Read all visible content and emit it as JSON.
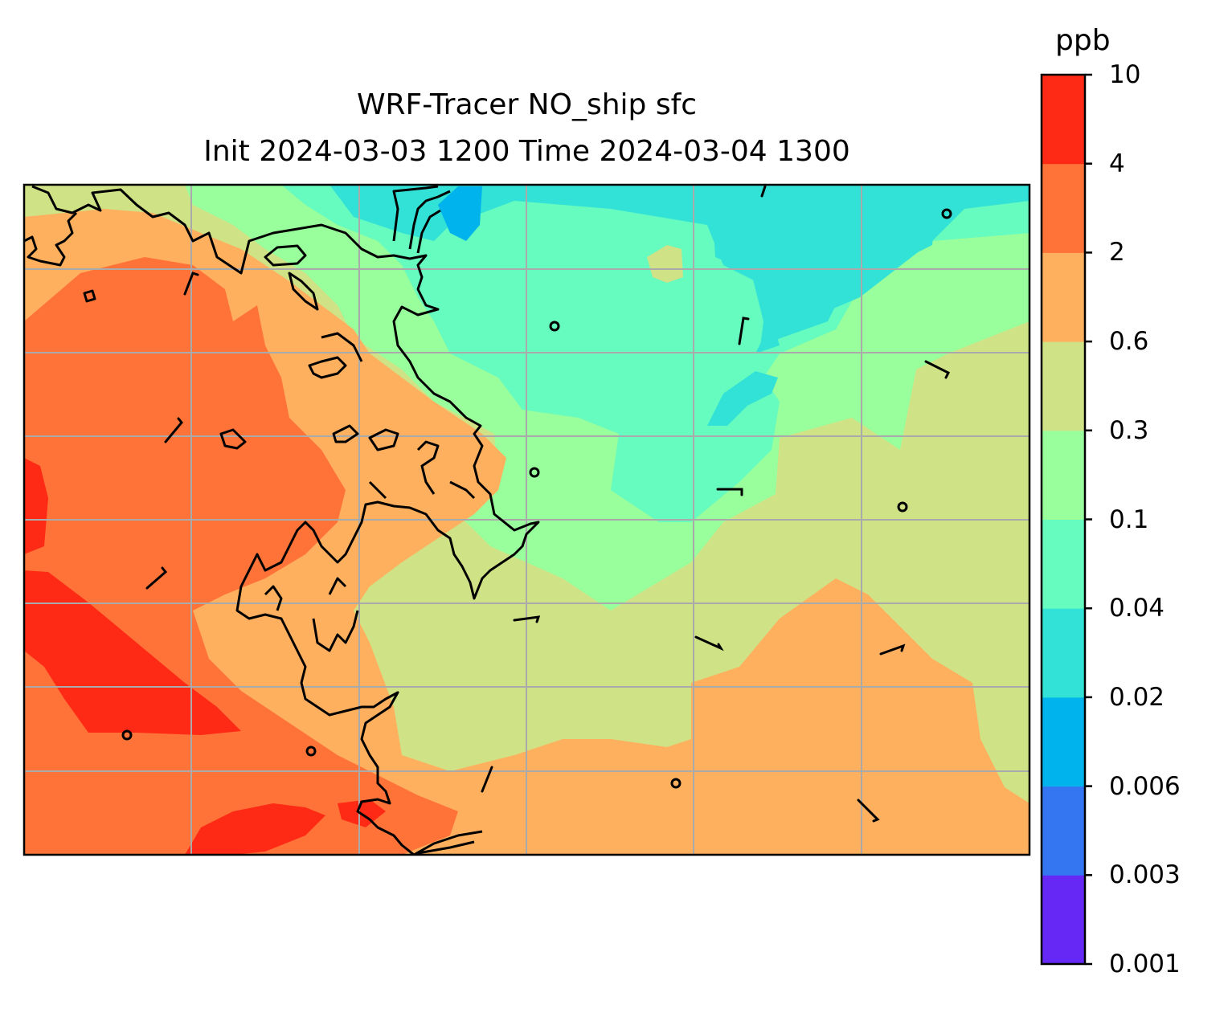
{
  "title": {
    "line1": "WRF-Tracer NO_ship sfc",
    "line2": "Init 2024-03-03 1200 Time 2024-03-04 1300"
  },
  "colorbar": {
    "unit": "ppb",
    "tick_labels": [
      "0.001",
      "0.003",
      "0.006",
      "0.02",
      "0.04",
      "0.1",
      "0.3",
      "0.6",
      "2",
      "4",
      "10"
    ],
    "colors": [
      "#6528f5",
      "#3476f2",
      "#00b3ec",
      "#33e2d7",
      "#66fbbf",
      "#99fe9c",
      "#cfe286",
      "#ffb05f",
      "#ff7339",
      "#ff2a15"
    ]
  },
  "map": {
    "field": "NO_ship",
    "level": "sfc",
    "coastline_color": "#000000",
    "gridline_color": "#aaaaaa",
    "wind_barbs": "calm-circles-and-light-barbs"
  }
}
